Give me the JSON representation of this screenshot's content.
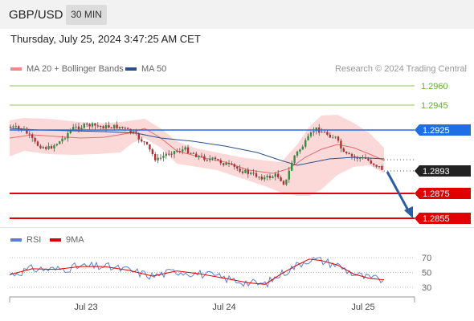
{
  "header": {
    "symbol": "GBP/USD",
    "timeframe": "30 MIN"
  },
  "datetime": "Thursday, July 25, 2024 3:47:25 AM CET",
  "legend": {
    "ma20": {
      "label": "MA 20 + Bollinger Bands",
      "color": "#f08a8a"
    },
    "ma50": {
      "label": "MA 50",
      "color": "#2c4f8c"
    },
    "credit": "Research © 2024 Trading Central"
  },
  "rsi_legend": {
    "rsi": {
      "label": "RSI",
      "color": "#5b7fd4"
    },
    "ma": {
      "label": "9MA",
      "color": "#e00000"
    }
  },
  "levels": [
    {
      "name": "level-12960",
      "label": "1.2960",
      "type": "green-line"
    },
    {
      "name": "level-12945",
      "label": "1.2945",
      "type": "green-line"
    },
    {
      "name": "level-12925",
      "label": "1.2925",
      "type": "blue-tag"
    },
    {
      "name": "level-12893",
      "label": "1.2893",
      "type": "current-tag"
    },
    {
      "name": "level-12875",
      "label": "1.2875",
      "type": "red-tag"
    },
    {
      "name": "level-12855",
      "label": "1.2855",
      "type": "red-tag"
    }
  ],
  "rsi_axis": [
    "70",
    "50",
    "30"
  ],
  "x_axis": [
    "Jul 23",
    "Jul 24",
    "Jul 25"
  ],
  "colors": {
    "green": "#8cc85a",
    "blue": "#1e6fe6",
    "red": "#e00000",
    "dark": "#222222",
    "candle_up": "#2f8f3b",
    "candle_down": "#b23030",
    "band": "#fbd9d9",
    "arrow": "#2b5ea0"
  }
}
